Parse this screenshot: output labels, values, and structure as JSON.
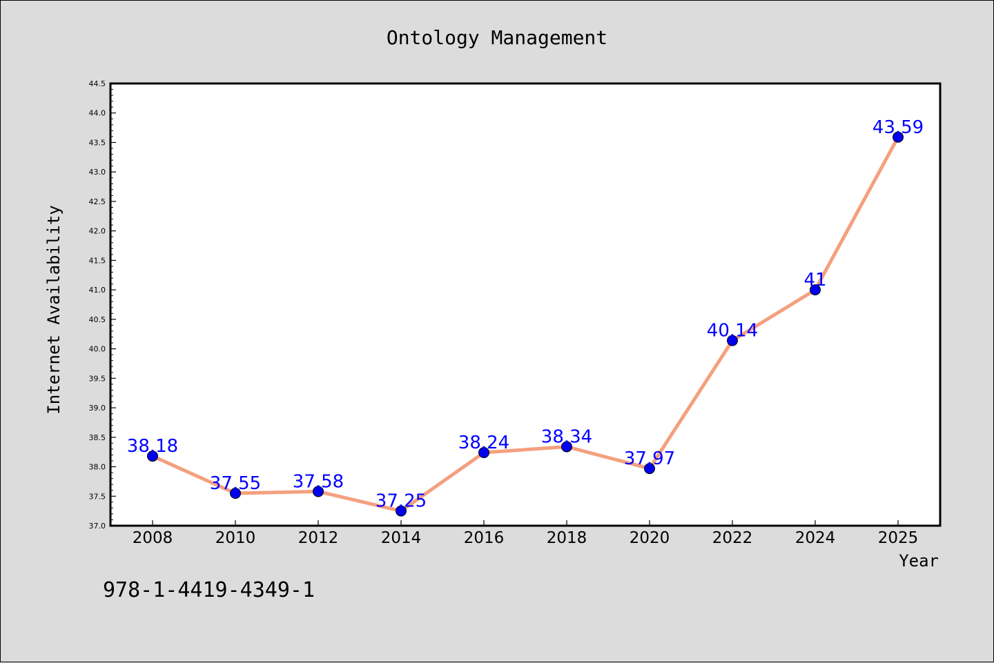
{
  "chart_data": {
    "type": "line",
    "title": "Ontology Management",
    "xlabel": "Year",
    "ylabel": "Internet Availability",
    "categories": [
      "2008",
      "2010",
      "2012",
      "2014",
      "2016",
      "2018",
      "2020",
      "2022",
      "2024",
      "2025"
    ],
    "series": [
      {
        "values": [
          38.18,
          37.55,
          37.58,
          37.25,
          38.24,
          38.34,
          37.97,
          40.14,
          41,
          43.59
        ],
        "data_labels": [
          "38.18",
          "37.55",
          "37.58",
          "37.25",
          "38.24",
          "38.34",
          "37.97",
          "40.14",
          "41",
          "43.59"
        ]
      }
    ],
    "ylim": [
      37.0,
      44.5
    ],
    "yticks": [
      37.0,
      37.5,
      38.0,
      38.5,
      39.0,
      39.5,
      40.0,
      40.5,
      41.0,
      41.5,
      42.0,
      42.5,
      43.0,
      43.5,
      44.0,
      44.5
    ],
    "ytick_labels": [
      "37.0",
      "37.5",
      "38.0",
      "38.5",
      "39.0",
      "39.5",
      "40.0",
      "40.5",
      "41.0",
      "41.5",
      "42.0",
      "42.5",
      "43.0",
      "43.5",
      "44.0",
      "44.5"
    ],
    "grid": false,
    "line_color": "#f4a07f",
    "marker_color": "#0000ee",
    "label_color": "#0000ff",
    "background": "#dcdcdc",
    "plot_background": "#ffffff"
  },
  "annotation": {
    "isbn": "978-1-4419-4349-1"
  }
}
